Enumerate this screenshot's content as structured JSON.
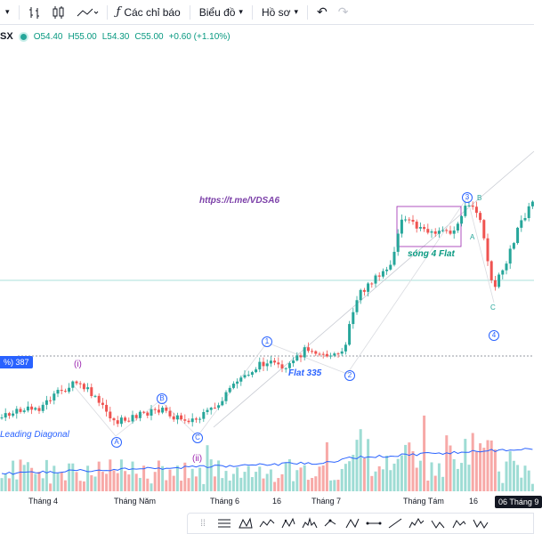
{
  "toolbar": {
    "indicators_label": "Các chỉ báo",
    "chart_label": "Biểu đồ",
    "profile_label": "Hồ sơ"
  },
  "legend": {
    "symbol": "SX",
    "open": "O54.40",
    "high": "H55.00",
    "low": "L54.30",
    "close": "C55.00",
    "change": "+0.60 (+1.10%)"
  },
  "price_tag": "%) 387",
  "annotations": {
    "link": "https://t.me/VDSA6",
    "wave4_flat": "sóng 4 Flat",
    "flat335": "Flat 335",
    "leading_diagonal": "Leading Diagonal",
    "i": "(i)",
    "ii": "(ii)",
    "A_circle": "A",
    "B_circle": "B",
    "C_circle": "C",
    "w1": "1",
    "w2": "2",
    "w3": "3",
    "w4": "4",
    "small_A": "A",
    "small_B": "B",
    "small_C": "C"
  },
  "xaxis": {
    "labels": [
      "Tháng 4",
      "Tháng Năm",
      "Tháng 6",
      "16",
      "Tháng 7",
      "Tháng Tám",
      "16"
    ],
    "badge": "06 Tháng 9"
  },
  "colors": {
    "up": "#26a69a",
    "down": "#ef5350",
    "vol_up": "#9edcd4",
    "vol_down": "#f7a9a7",
    "accent": "#2962ff",
    "purple": "#9c27b0",
    "teal_text": "#089981"
  }
}
